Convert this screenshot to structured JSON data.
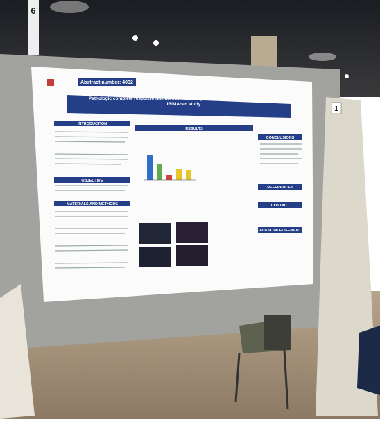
{
  "poster": {
    "abstract_number": "Abstract number: 4032",
    "title": "Pathologic complete response rate across Triple Negative Breast Cancer subtypes in the IBIMAcan study",
    "sections": [
      "INTRODUCTION",
      "OBJECTIVE",
      "MATERIALS AND METHODS",
      "RESULTS",
      "CONCLUSIONS",
      "REFERENCES",
      "CONTACT",
      "ACKNOWLEDGEMENT"
    ]
  },
  "board_number": "1",
  "sign_number": "6"
}
